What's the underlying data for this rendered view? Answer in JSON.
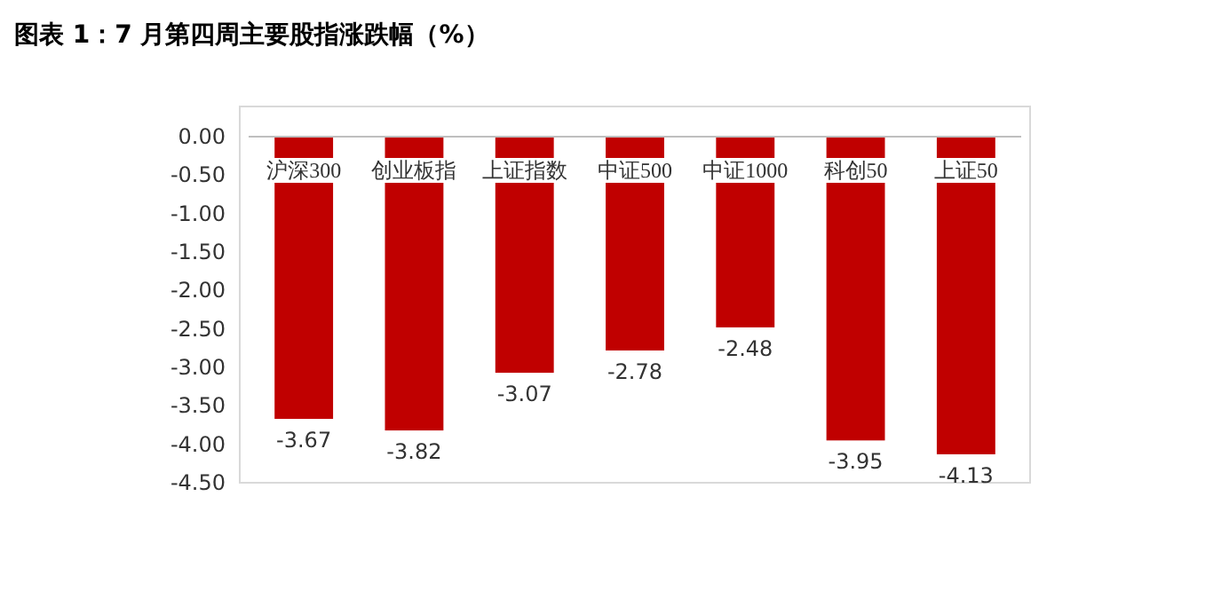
{
  "chart_data": {
    "type": "bar",
    "title": "图表 1：7 月第四周主要股指涨跌幅（%）",
    "categories": [
      "沪深300",
      "创业板指",
      "上证指数",
      "中证500",
      "中证1000",
      "科创50",
      "上证50"
    ],
    "values": [
      -3.67,
      -3.82,
      -3.07,
      -2.78,
      -2.48,
      -3.95,
      -4.13
    ],
    "color": "#c00000",
    "ylim": [
      -4.5,
      0
    ],
    "yticks": [
      {
        "value": 0,
        "label": "0.00"
      },
      {
        "value": -0.5,
        "label": "-0.50"
      },
      {
        "value": -1,
        "label": "-1.00"
      },
      {
        "value": -1.5,
        "label": "-1.50"
      },
      {
        "value": -2,
        "label": "-2.00"
      },
      {
        "value": -2.5,
        "label": "-2.50"
      },
      {
        "value": -3,
        "label": "-3.00"
      },
      {
        "value": -3.5,
        "label": "-3.50"
      },
      {
        "value": -4,
        "label": "-4.00"
      },
      {
        "value": -4.5,
        "label": "-4.50"
      }
    ],
    "data_labels": true,
    "grid": false
  }
}
